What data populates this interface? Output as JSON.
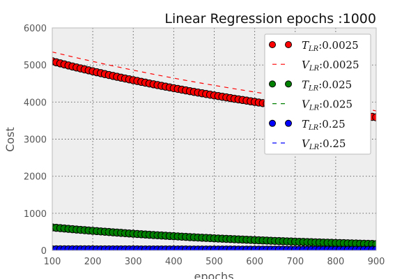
{
  "chart_data": {
    "type": "line",
    "title": "Linear Regression epochs :1000",
    "xlabel": "epochs",
    "ylabel": "Cost",
    "xlim": [
      100,
      900
    ],
    "ylim": [
      0,
      6000
    ],
    "xticks": [
      "100",
      "200",
      "300",
      "400",
      "500",
      "600",
      "700",
      "800",
      "900"
    ],
    "yticks": [
      "0",
      "1000",
      "2000",
      "3000",
      "4000",
      "5000",
      "6000"
    ],
    "grid": true,
    "legend_position": "top-right",
    "x": [
      100,
      150,
      200,
      250,
      300,
      350,
      400,
      450,
      500,
      550,
      600,
      650,
      700,
      750,
      800,
      850,
      900
    ],
    "series": [
      {
        "name": "T_LR:0.0025",
        "legend_main": "T",
        "legend_sub": "LR",
        "legend_suffix": ":0.0025",
        "style": "markers",
        "color": "#ff0000",
        "values": [
          5100,
          4960,
          4830,
          4705,
          4590,
          4480,
          4375,
          4275,
          4180,
          4090,
          4005,
          3925,
          3850,
          3780,
          3712,
          3650,
          3590
        ]
      },
      {
        "name": "V_LR:0.0025",
        "legend_main": "V",
        "legend_sub": "LR",
        "legend_suffix": ":0.0025",
        "style": "dashed",
        "color": "#ff0000",
        "values": [
          5350,
          5220,
          5095,
          4975,
          4860,
          4750,
          4645,
          4545,
          4450,
          4358,
          4270,
          4185,
          4105,
          4028,
          3955,
          3885,
          3760
        ]
      },
      {
        "name": "T_LR:0.025",
        "legend_main": "T",
        "legend_sub": "LR",
        "legend_suffix": ":0.025",
        "style": "markers",
        "color": "#008000",
        "values": [
          620,
          572,
          528,
          488,
          450,
          415,
          383,
          353,
          326,
          301,
          278,
          256,
          236,
          218,
          201,
          186,
          171
        ]
      },
      {
        "name": "V_LR:0.025",
        "legend_main": "V",
        "legend_sub": "LR",
        "legend_suffix": ":0.025",
        "style": "dashed",
        "color": "#008000",
        "values": [
          630,
          581,
          536,
          494,
          456,
          421,
          388,
          358,
          330,
          305,
          281,
          259,
          239,
          221,
          204,
          188,
          174
        ]
      },
      {
        "name": "T_LR:0.25",
        "legend_main": "T",
        "legend_sub": "LR",
        "legend_suffix": ":0.25",
        "style": "markers",
        "color": "#0000ff",
        "values": [
          30,
          29,
          28,
          27,
          26,
          25,
          24,
          23,
          22,
          21,
          20,
          19,
          18,
          17,
          16,
          15,
          14
        ]
      },
      {
        "name": "V_LR:0.25",
        "legend_main": "V",
        "legend_sub": "LR",
        "legend_suffix": ":0.25",
        "style": "dashed",
        "color": "#0000ff",
        "values": [
          32,
          31,
          30,
          29,
          28,
          27,
          26,
          25,
          24,
          23,
          22,
          21,
          20,
          19,
          18,
          17,
          16
        ]
      }
    ]
  }
}
